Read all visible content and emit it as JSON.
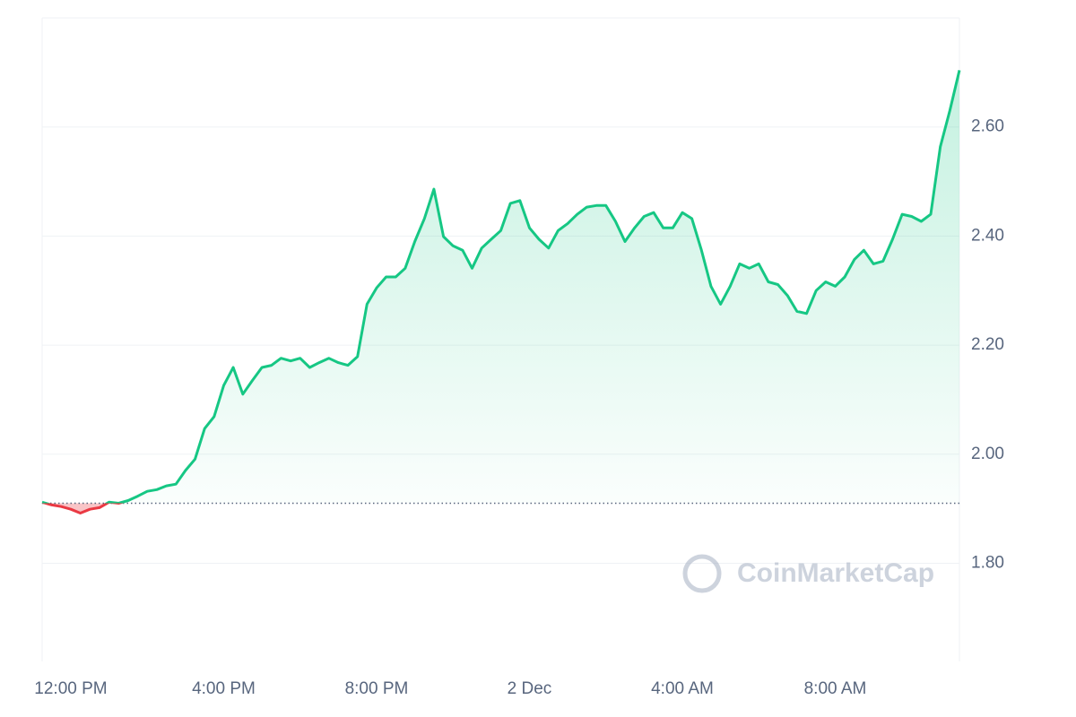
{
  "chart_data": {
    "type": "line",
    "categories": [
      null,
      null,
      null,
      "12:00 PM",
      null,
      null,
      null,
      null,
      null,
      null,
      null,
      null,
      null,
      null,
      null,
      null,
      null,
      null,
      null,
      "4:00 PM",
      null,
      null,
      null,
      null,
      null,
      null,
      null,
      null,
      null,
      null,
      null,
      null,
      null,
      null,
      null,
      "8:00 PM",
      null,
      null,
      null,
      null,
      null,
      null,
      null,
      null,
      null,
      null,
      null,
      null,
      null,
      null,
      null,
      "2 Dec",
      null,
      null,
      null,
      null,
      null,
      null,
      null,
      null,
      null,
      null,
      null,
      null,
      null,
      null,
      null,
      "4:00 AM",
      null,
      null,
      null,
      null,
      null,
      null,
      null,
      null,
      null,
      null,
      null,
      null,
      null,
      null,
      null,
      "8:00 AM",
      null,
      null,
      null,
      null,
      null,
      null,
      null,
      null,
      null,
      null,
      null,
      null,
      null
    ],
    "values": [
      1.912,
      1.907,
      1.904,
      1.899,
      1.892,
      1.899,
      1.902,
      1.912,
      1.91,
      1.915,
      1.923,
      1.932,
      1.935,
      1.942,
      1.945,
      1.97,
      1.991,
      2.047,
      2.069,
      2.126,
      2.159,
      2.11,
      2.135,
      2.159,
      2.163,
      2.176,
      2.171,
      2.176,
      2.159,
      2.168,
      2.176,
      2.168,
      2.163,
      2.179,
      2.275,
      2.305,
      2.325,
      2.325,
      2.341,
      2.39,
      2.432,
      2.486,
      2.399,
      2.382,
      2.374,
      2.341,
      2.378,
      2.394,
      2.41,
      2.46,
      2.465,
      2.415,
      2.394,
      2.378,
      2.41,
      2.423,
      2.44,
      2.453,
      2.456,
      2.456,
      2.427,
      2.39,
      2.415,
      2.436,
      2.443,
      2.415,
      2.415,
      2.443,
      2.432,
      2.374,
      2.308,
      2.275,
      2.308,
      2.349,
      2.341,
      2.349,
      2.316,
      2.311,
      2.291,
      2.262,
      2.258,
      2.3,
      2.316,
      2.308,
      2.325,
      2.357,
      2.374,
      2.349,
      2.354,
      2.394,
      2.44,
      2.436,
      2.427,
      2.44,
      2.564,
      2.63,
      2.704
    ],
    "baseline": 1.91,
    "up_color": "#16c784",
    "down_color": "#ea3943",
    "ylim": [
      1.62,
      2.8
    ],
    "yticks": [
      {
        "value": 1.8,
        "label": "1.80"
      },
      {
        "value": 2.0,
        "label": "2.00"
      },
      {
        "value": 2.2,
        "label": "2.20"
      },
      {
        "value": 2.4,
        "label": "2.40"
      },
      {
        "value": 2.6,
        "label": "2.60"
      }
    ],
    "grid": true,
    "watermark": "CoinMarketCap"
  }
}
